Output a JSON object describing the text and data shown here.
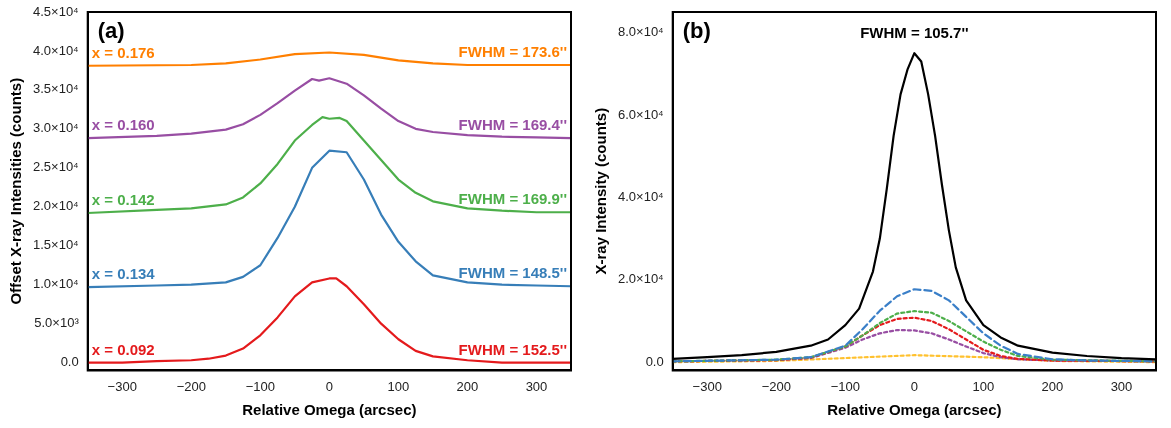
{
  "chart_data": [
    {
      "type": "line",
      "xlabel": "Relative Omega (arcsec)",
      "ylabel": "Offset X-ray Intensities (counts)",
      "xlim": [
        -350,
        350
      ],
      "ylim": [
        -1000,
        45000
      ],
      "xticks": [
        {
          "value": -300,
          "label": "−300"
        },
        {
          "value": -200,
          "label": "−200"
        },
        {
          "value": -100,
          "label": "−100"
        },
        0,
        100,
        200,
        300
      ],
      "yticks": [
        {
          "value": 0,
          "label": "0.0"
        },
        {
          "value": 5000,
          "label": "5.0×10³"
        },
        {
          "value": 10000,
          "label": "1.0×10⁴"
        },
        {
          "value": 15000,
          "label": "1.5×10⁴"
        },
        {
          "value": 20000,
          "label": "2.0×10⁴"
        },
        {
          "value": 25000,
          "label": "2.5×10⁴"
        },
        {
          "value": 30000,
          "label": "3.0×10⁴"
        },
        {
          "value": 35000,
          "label": "3.5×10⁴"
        },
        {
          "value": 40000,
          "label": "4.0×10⁴"
        },
        {
          "value": 45000,
          "label": "4.5×10⁴"
        }
      ],
      "grid": false,
      "legend": false,
      "marker": "none",
      "line_style": "solid",
      "series": [
        {
          "name": "x = 0.092",
          "color": "#e41a1c",
          "x": [
            -350,
            -300,
            -250,
            -200,
            -175,
            -150,
            -125,
            -100,
            -75,
            -50,
            -25,
            0,
            10,
            25,
            50,
            75,
            100,
            125,
            150,
            200,
            250,
            300,
            350
          ],
          "values": [
            0,
            0,
            200,
            300,
            500,
            900,
            1800,
            3500,
            5800,
            8500,
            10300,
            10800,
            10800,
            9800,
            7500,
            5000,
            3000,
            1500,
            800,
            300,
            0,
            0,
            0
          ]
        },
        {
          "name": "x = 0.134",
          "color": "#377eb8",
          "x": [
            -350,
            -250,
            -200,
            -150,
            -125,
            -100,
            -75,
            -50,
            -25,
            0,
            25,
            50,
            75,
            100,
            125,
            150,
            200,
            250,
            300,
            350
          ],
          "values": [
            9700,
            9900,
            10000,
            10300,
            11000,
            12500,
            16000,
            20000,
            25000,
            27200,
            27000,
            23500,
            19000,
            15500,
            13000,
            11200,
            10300,
            10000,
            9900,
            9800
          ]
        },
        {
          "name": "x = 0.142",
          "color": "#4daf4a",
          "x": [
            -350,
            -250,
            -200,
            -150,
            -125,
            -100,
            -75,
            -50,
            -25,
            -10,
            0,
            15,
            25,
            50,
            75,
            100,
            125,
            150,
            200,
            250,
            300,
            350
          ],
          "values": [
            19200,
            19600,
            19800,
            20300,
            21200,
            23000,
            25500,
            28500,
            30500,
            31500,
            31300,
            31400,
            31000,
            28500,
            26000,
            23500,
            21800,
            20700,
            19800,
            19500,
            19300,
            19300
          ]
        },
        {
          "name": "x = 0.160",
          "color": "#984ea3",
          "x": [
            -350,
            -250,
            -200,
            -150,
            -125,
            -100,
            -75,
            -50,
            -25,
            -15,
            0,
            25,
            50,
            75,
            100,
            125,
            150,
            200,
            250,
            300,
            350
          ],
          "values": [
            28800,
            29100,
            29400,
            29900,
            30600,
            31800,
            33300,
            34900,
            36400,
            36200,
            36500,
            35800,
            34300,
            32600,
            31000,
            30000,
            29600,
            29200,
            29000,
            28900,
            28800
          ]
        },
        {
          "name": "x = 0.176",
          "color": "#ff7f00",
          "x": [
            -350,
            -200,
            -150,
            -100,
            -50,
            0,
            50,
            100,
            150,
            200,
            350
          ],
          "values": [
            38100,
            38200,
            38400,
            38900,
            39600,
            39800,
            39500,
            38800,
            38400,
            38200,
            38200
          ]
        }
      ],
      "annotations": [
        "(a)",
        "FWHM = 152.5''",
        "FWHM = 148.5''",
        "FWHM = 169.9''",
        "FWHM = 169.4''",
        "FWHM = 173.6''"
      ]
    },
    {
      "type": "line",
      "xlabel": "Relative Omega (arcsec)",
      "ylabel": "X-ray Intensity (counts)",
      "xlim": [
        -350,
        350
      ],
      "ylim": [
        -2000,
        85000
      ],
      "xticks": [
        {
          "value": -300,
          "label": "−300"
        },
        {
          "value": -200,
          "label": "−200"
        },
        {
          "value": -100,
          "label": "−100"
        },
        0,
        100,
        200,
        300
      ],
      "yticks": [
        {
          "value": 0,
          "label": "0.0"
        },
        {
          "value": 20000,
          "label": "2.0×10⁴"
        },
        {
          "value": 40000,
          "label": "4.0×10⁴"
        },
        {
          "value": 60000,
          "label": "6.0×10⁴"
        },
        {
          "value": 80000,
          "label": "8.0×10⁴"
        }
      ],
      "grid": false,
      "legend": false,
      "marker": "none",
      "series": [
        {
          "color": "#000000",
          "line_style": "solid",
          "x": [
            -350,
            -300,
            -250,
            -200,
            -150,
            -125,
            -100,
            -80,
            -60,
            -50,
            -40,
            -30,
            -20,
            -10,
            0,
            10,
            20,
            30,
            40,
            50,
            60,
            75,
            100,
            125,
            150,
            200,
            250,
            300,
            350
          ],
          "values": [
            800,
            1200,
            1700,
            2500,
            4000,
            5500,
            9000,
            13000,
            22000,
            30000,
            42000,
            55000,
            65000,
            71000,
            75000,
            73000,
            65000,
            55000,
            43000,
            32000,
            23000,
            15000,
            9000,
            6000,
            4000,
            2300,
            1500,
            1000,
            700
          ]
        },
        {
          "color": "#3a7fc8",
          "line_style": "dashed",
          "x": [
            -350,
            -200,
            -150,
            -100,
            -75,
            -50,
            -25,
            0,
            25,
            50,
            75,
            100,
            125,
            150,
            200,
            250,
            350
          ],
          "values": [
            200,
            600,
            1200,
            4000,
            8000,
            12500,
            16000,
            17700,
            17300,
            15000,
            11000,
            7000,
            4000,
            2000,
            700,
            400,
            200
          ]
        },
        {
          "color": "#4daf4a",
          "line_style": "dotted",
          "x": [
            -350,
            -200,
            -150,
            -100,
            -75,
            -50,
            -25,
            0,
            25,
            50,
            75,
            100,
            125,
            150,
            200,
            350
          ],
          "values": [
            200,
            600,
            1200,
            3800,
            6500,
            9500,
            11800,
            12400,
            12000,
            10000,
            7500,
            5000,
            3000,
            1500,
            600,
            200
          ]
        },
        {
          "color": "#e41a1c",
          "line_style": "dotted",
          "x": [
            -350,
            -200,
            -150,
            -100,
            -75,
            -50,
            -25,
            0,
            25,
            50,
            75,
            100,
            125,
            150,
            200,
            350
          ],
          "values": [
            200,
            500,
            1100,
            3800,
            6500,
            9000,
            10500,
            10800,
            10000,
            8000,
            5500,
            3000,
            1500,
            800,
            400,
            200
          ]
        },
        {
          "color": "#984ea3",
          "line_style": "dotted",
          "x": [
            -350,
            -200,
            -150,
            -100,
            -75,
            -50,
            -25,
            0,
            25,
            50,
            75,
            100,
            125,
            150,
            200,
            350
          ],
          "values": [
            200,
            500,
            1000,
            3500,
            5500,
            7000,
            7800,
            7700,
            7000,
            5500,
            3800,
            2200,
            1200,
            700,
            400,
            200
          ]
        },
        {
          "color": "#ffc12e",
          "line_style": "dotted",
          "x": [
            -350,
            -200,
            -100,
            0,
            100,
            200,
            350
          ],
          "values": [
            0,
            300,
            1000,
            1700,
            1200,
            300,
            0
          ]
        }
      ],
      "annotations": [
        "(b)",
        "FWHM = 105.7''"
      ]
    }
  ]
}
